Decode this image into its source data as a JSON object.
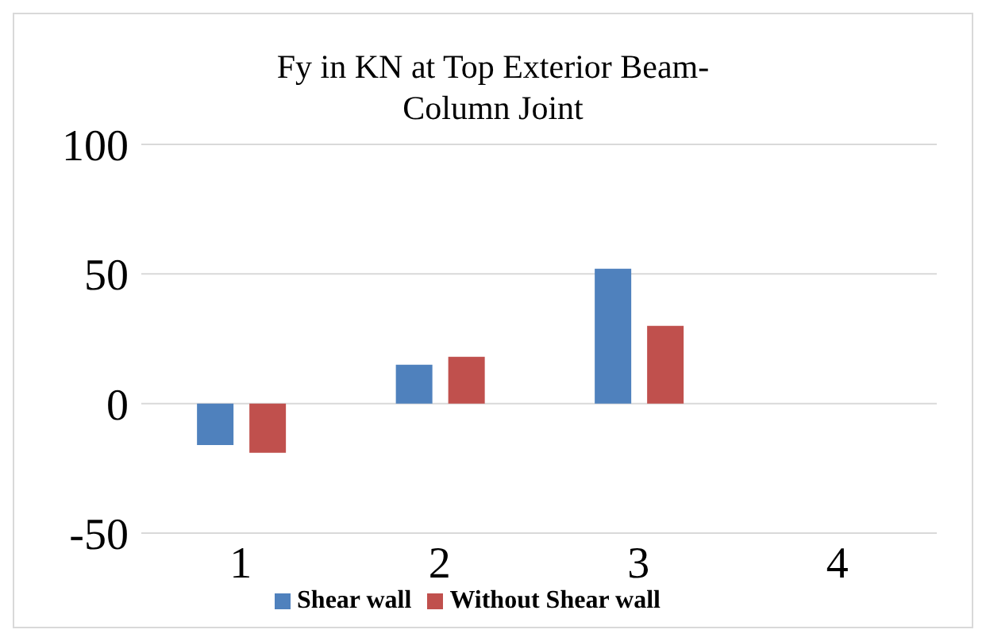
{
  "chart_data": {
    "type": "bar",
    "title": "Fy in KN at Top Exterior Beam-Column Joint",
    "categories": [
      "1",
      "2",
      "3",
      "4"
    ],
    "series": [
      {
        "name": "Shear wall",
        "color": "#4f81bd",
        "values": [
          -16,
          15,
          52,
          null
        ]
      },
      {
        "name": "Without Shear wall",
        "color": "#c0504d",
        "values": [
          -19,
          18,
          30,
          null
        ]
      }
    ],
    "ylim": [
      -50,
      100
    ],
    "yticks": [
      -50,
      0,
      50,
      100
    ],
    "grid": "y",
    "legend": "bottom"
  }
}
